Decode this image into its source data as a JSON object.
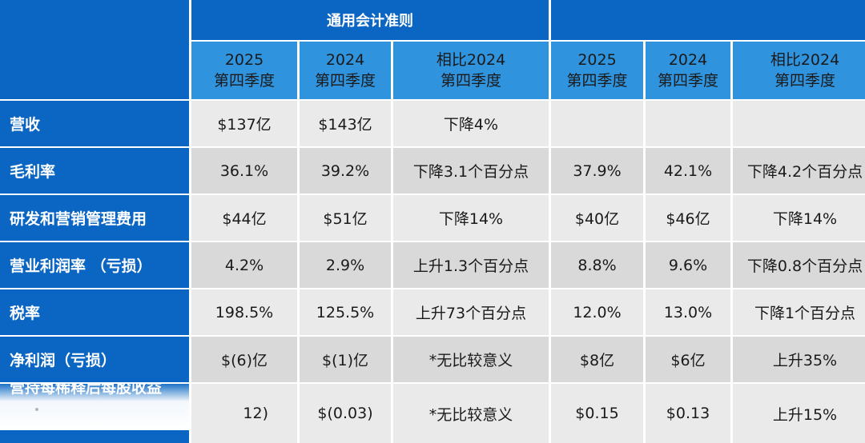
{
  "header": {
    "group_gaap": "通用会计准则",
    "group_nongaap": "",
    "col_2025": "2025\n第四季度",
    "col_2024": "2024\n第四季度",
    "col_compare": "相比2024\n第四季度"
  },
  "rows": [
    {
      "label": "营收",
      "gaap": [
        "$137亿",
        "$143亿",
        "下降4%"
      ],
      "nongaap": [
        "",
        "",
        ""
      ]
    },
    {
      "label": "毛利率",
      "gaap": [
        "36.1%",
        "39.2%",
        "下降3.1个百分点"
      ],
      "nongaap": [
        "37.9%",
        "42.1%",
        "下降4.2个百分点"
      ]
    },
    {
      "label": "研发和营销管理费用",
      "gaap": [
        "$44亿",
        "$51亿",
        "下降14%"
      ],
      "nongaap": [
        "$40亿",
        "$46亿",
        "下降14%"
      ]
    },
    {
      "label": "营业利润率 （亏损）",
      "gaap": [
        "4.2%",
        "2.9%",
        "上升1.3个百分点"
      ],
      "nongaap": [
        "8.8%",
        "9.6%",
        "下降0.8个百分点"
      ]
    },
    {
      "label": "税率",
      "gaap": [
        "198.5%",
        "125.5%",
        "上升73个百分点"
      ],
      "nongaap": [
        "12.0%",
        "13.0%",
        "下降1个百分点"
      ]
    },
    {
      "label": "净利润（亏损）",
      "gaap": [
        "$(6)亿",
        "$(1)亿",
        "*无比较意义"
      ],
      "nongaap": [
        "$8亿",
        "$6亿",
        "上升35%"
      ]
    },
    {
      "label": "营持每稀释后每股收益",
      "gaap": [
        "12)",
        "$(0.03)",
        "*无比较意义"
      ],
      "nongaap": [
        "$0.15",
        "$0.13",
        "上升15%"
      ]
    }
  ]
}
